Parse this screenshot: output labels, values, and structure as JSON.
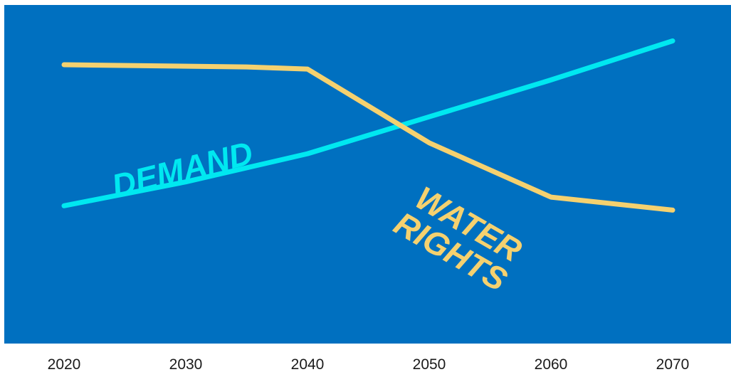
{
  "chart_data": {
    "type": "line",
    "title": "",
    "xlabel": "",
    "ylabel": "",
    "x_ticks": [
      "2020",
      "2030",
      "2040",
      "2050",
      "2060",
      "2070"
    ],
    "xlim": [
      2018,
      2075
    ],
    "ylim": [
      0,
      100
    ],
    "grid": false,
    "legend": "none",
    "background": "#0070C0",
    "series": [
      {
        "name": "DEMAND",
        "label_lines": [
          "DEMAND"
        ],
        "color": "#00E8F0",
        "x": [
          2020,
          2030,
          2040,
          2050,
          2060,
          2070
        ],
        "y": [
          35,
          46,
          59,
          76,
          93,
          111
        ]
      },
      {
        "name": "WATER RIGHTS",
        "label_lines": [
          "WATER",
          "RIGHTS"
        ],
        "color": "#F5D16F",
        "x": [
          2020,
          2035,
          2040,
          2050,
          2060,
          2070
        ],
        "y": [
          100,
          99,
          98,
          64,
          39,
          33
        ]
      }
    ]
  }
}
